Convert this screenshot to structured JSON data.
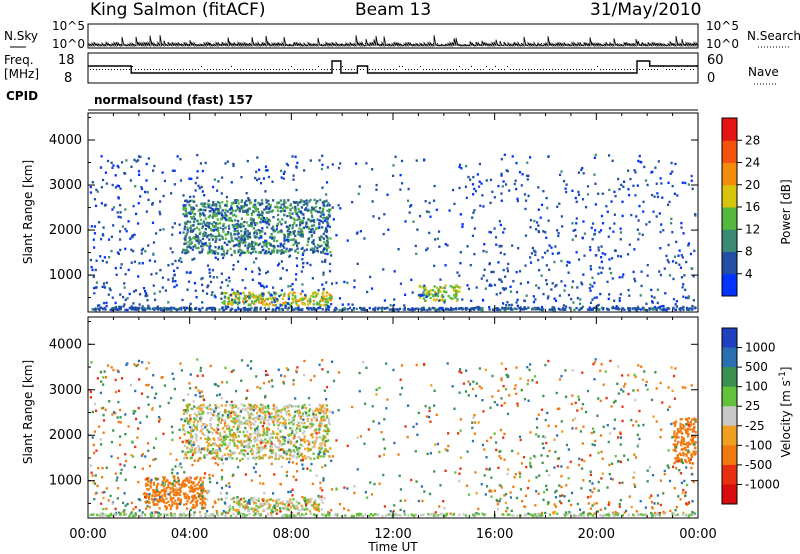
{
  "header": {
    "station": "King Salmon (fitACF)",
    "beam": "Beam 13",
    "date": "31/May/2010"
  },
  "noise_panel": {
    "left_label": "N.Sky",
    "right_label": "N.Search",
    "left_ticks": [
      "10^5",
      "10^0"
    ],
    "right_ticks": [
      "10^5",
      "10^0"
    ]
  },
  "freq_panel": {
    "left_label_line1": "Freq.",
    "left_label_line2": "[MHz]",
    "right_label": "Nave",
    "left_ticks": [
      "18",
      "8"
    ],
    "right_ticks": [
      "60",
      "0"
    ]
  },
  "cpid": {
    "label": "CPID",
    "program": "normalsound (fast) 157"
  },
  "time_axis": {
    "xlabel": "Time UT",
    "ticks": [
      "00:00",
      "04:00",
      "08:00",
      "12:00",
      "16:00",
      "20:00",
      "00:00"
    ]
  },
  "colors": {
    "power_scale": [
      "#0033ff",
      "#214fa5",
      "#3a8a74",
      "#53b83b",
      "#d6c50c",
      "#f58b0a",
      "#f2520b",
      "#e51414"
    ],
    "velocity_scale": [
      "#2040c0",
      "#2a6fb0",
      "#3a9050",
      "#62c23a",
      "#c8c8c8",
      "#f0a020",
      "#f07a10",
      "#e83010",
      "#d80c0c"
    ]
  },
  "chart_data": [
    {
      "type": "heatmap",
      "title": "Power",
      "xlabel": "",
      "ylabel": "Slant Range [km]",
      "y_ticks": [
        "1000",
        "2000",
        "3000",
        "4000"
      ],
      "ylim": [
        180,
        4600
      ],
      "xlim": [
        0,
        24
      ],
      "colorbar_label": "Power [dB]",
      "colorbar_ticks": [
        "4",
        "8",
        "12",
        "16",
        "20",
        "24",
        "28"
      ],
      "colorbar_range": [
        0,
        30
      ],
      "features": [
        {
          "label": "ground scatter band",
          "t": [
            0,
            24
          ],
          "range_km": [
            180,
            300
          ],
          "value": 6
        },
        {
          "label": "E-region patch",
          "t": [
            5.2,
            9.6
          ],
          "range_km": [
            350,
            650
          ],
          "value": 16
        },
        {
          "label": "midnight echoes",
          "t": [
            3.7,
            9.5
          ],
          "range_km": [
            1500,
            2700
          ],
          "value": 9
        },
        {
          "label": "echo arc",
          "t": [
            13.0,
            14.6
          ],
          "range_km": [
            450,
            800
          ],
          "value": 14
        }
      ]
    },
    {
      "type": "heatmap",
      "title": "Velocity",
      "xlabel": "Time UT",
      "ylabel": "Slant Range [km]",
      "y_ticks": [
        "1000",
        "2000",
        "3000",
        "4000"
      ],
      "ylim": [
        180,
        4600
      ],
      "xlim": [
        0,
        24
      ],
      "colorbar_label": "Velocity [m s^-1]",
      "colorbar_ticks": [
        "1000",
        "500",
        "100",
        "25",
        "-25",
        "-100",
        "-500",
        "-1000"
      ],
      "colorbar_range": [
        -1200,
        1200
      ],
      "features": [
        {
          "label": "ground scatter",
          "t": [
            5.5,
            9.2
          ],
          "range_km": [
            350,
            650
          ],
          "value": 0
        },
        {
          "label": "midnight echoes",
          "t": [
            3.7,
            9.5
          ],
          "range_km": [
            1500,
            2700
          ],
          "value": 0
        },
        {
          "label": "evening receding echoes",
          "t": [
            2.2,
            4.6
          ],
          "range_km": [
            400,
            1100
          ],
          "value": -300
        },
        {
          "label": "midnight receding echoes",
          "t": [
            23.0,
            24
          ],
          "range_km": [
            1400,
            2400
          ],
          "value": -400
        }
      ]
    }
  ]
}
